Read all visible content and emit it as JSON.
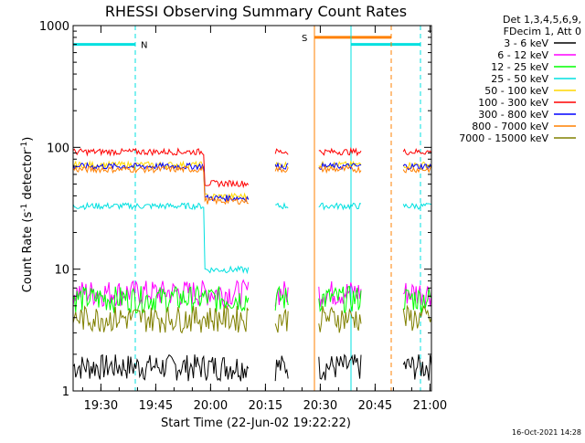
{
  "chart_data": {
    "type": "line",
    "title": "RHESSI Observing Summary Count Rates",
    "xlabel": "Start Time (22-Jun-02 19:22:22)",
    "ylabel_main": "Count Rate (s",
    "ylabel_sup1": "-1",
    "ylabel_mid": " detector",
    "ylabel_sup2": "-1",
    "ylabel_end": ")",
    "yscale": "log",
    "ylim": [
      1,
      1000
    ],
    "xlim_minutes": [
      0,
      98
    ],
    "y_ticks": [
      "1",
      "10",
      "100",
      "1000"
    ],
    "x_ticks": [
      "19:30",
      "19:45",
      "20:00",
      "20:15",
      "20:30",
      "20:45",
      "21:00"
    ],
    "x_tick_minutes": [
      7.6,
      22.6,
      37.6,
      52.6,
      67.6,
      82.6,
      97.6
    ],
    "footer_date": "16-Oct-2021 14:28",
    "detector_info": [
      "Det 1,3,4,5,6,9,",
      "FDecim 1, Att 0"
    ],
    "flag_labels": {
      "n": "N",
      "s": "S"
    },
    "flags": {
      "night": {
        "color": "#00e0e0",
        "bars": [
          [
            0,
            17
          ],
          [
            76,
            95
          ]
        ],
        "level": 700
      },
      "saa": {
        "color": "#ff8000",
        "bars": [
          [
            66,
            87
          ]
        ],
        "level": 800
      },
      "night_bounds": [
        0,
        17,
        76,
        95
      ],
      "saa_bounds": [
        66,
        87
      ]
    },
    "gaps": [
      [
        48,
        55
      ],
      [
        59,
        67
      ],
      [
        79,
        90
      ]
    ],
    "series": [
      {
        "name": "3 - 6 keV",
        "color": "#000000",
        "level": 1.6
      },
      {
        "name": "6 - 12 keV",
        "color": "#ff00ff",
        "level": 6.5
      },
      {
        "name": "12 - 25 keV",
        "color": "#00ff00",
        "level": 5.8
      },
      {
        "name": "25 - 50 keV",
        "color": "#00e0e0",
        "level": 33
      },
      {
        "name": "50 - 100 keV",
        "color": "#ffd700",
        "level": 72
      },
      {
        "name": "100 - 300 keV",
        "color": "#ff0000",
        "level": 92
      },
      {
        "name": "300 - 800 keV",
        "color": "#0000ff",
        "level": 70
      },
      {
        "name": "800 - 7000 keV",
        "color": "#ff8000",
        "level": 66
      },
      {
        "name": "7000 - 15000 keV",
        "color": "#808000",
        "level": 4
      }
    ],
    "grid": false,
    "legend_position": "right"
  }
}
